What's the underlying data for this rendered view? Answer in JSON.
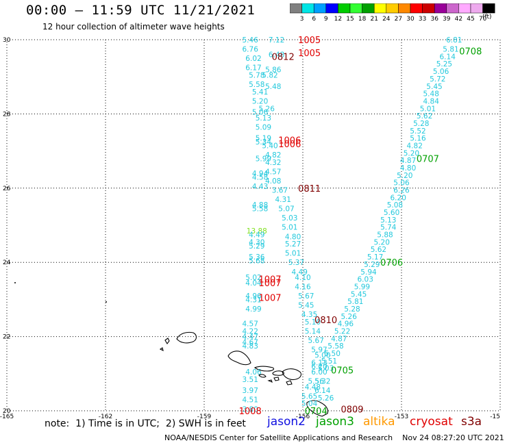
{
  "header": {
    "title": "00:00 — 11:59 UTC 11/21/2021",
    "subtitle": "12 hour collection of altimeter wave heights"
  },
  "colorbar": {
    "colors": [
      "#808080",
      "#00e5e5",
      "#00a0ff",
      "#0000ff",
      "#00cc00",
      "#33ff33",
      "#00a000",
      "#ffff00",
      "#ffcc00",
      "#ff8800",
      "#ff0000",
      "#cc0000",
      "#990099",
      "#cc66cc",
      "#ffaaff",
      "#eeaaee",
      "#000000"
    ],
    "labels": [
      "3",
      "6",
      "9",
      "12",
      "15",
      "18",
      "21",
      "24",
      "27",
      "30",
      "33",
      "36",
      "39",
      "42",
      "45",
      "70"
    ],
    "units": "(ft)"
  },
  "axes": {
    "lat_ticks": [
      "30",
      "28",
      "26",
      "24",
      "22",
      "20"
    ],
    "lon_ticks": [
      "-165",
      "-162",
      "-159",
      "-156",
      "-153",
      "-15"
    ]
  },
  "footer": {
    "note": "note:  1) Time is in UTC;  2) SWH is in feet",
    "legend": [
      {
        "name": "jason2",
        "color": "#1010e0"
      },
      {
        "name": "jason3",
        "color": "#00a000"
      },
      {
        "name": "altika",
        "color": "#ff9900"
      },
      {
        "name": "cryosat",
        "color": "#e00000"
      },
      {
        "name": "s3a",
        "color": "#800000"
      }
    ],
    "credit": "NOAA/NESDIS Center for Satellite Applications and Research    Nov 24 08:27:20 UTC 2021"
  },
  "times": [
    {
      "text": "1005",
      "lon": -155.8,
      "lat": 30.0,
      "color": "#e00000"
    },
    {
      "text": "1005",
      "lon": -155.8,
      "lat": 29.65,
      "color": "#e00000"
    },
    {
      "text": "0812",
      "lon": -156.6,
      "lat": 29.55,
      "color": "#800000"
    },
    {
      "text": "1006",
      "lon": -156.4,
      "lat": 27.3,
      "color": "#e00000"
    },
    {
      "text": "1006",
      "lon": -156.4,
      "lat": 27.2,
      "color": "#e00000"
    },
    {
      "text": "0811",
      "lon": -155.8,
      "lat": 26.0,
      "color": "#800000"
    },
    {
      "text": "1007",
      "lon": -157.0,
      "lat": 23.55,
      "color": "#e00000"
    },
    {
      "text": "1007",
      "lon": -157.0,
      "lat": 23.45,
      "color": "#e00000"
    },
    {
      "text": "1007",
      "lon": -157.0,
      "lat": 23.05,
      "color": "#e00000"
    },
    {
      "text": "1008",
      "lon": -157.6,
      "lat": 20.0,
      "color": "#e00000"
    },
    {
      "text": "0810",
      "lon": -155.3,
      "lat": 22.45,
      "color": "#800000"
    },
    {
      "text": "0809",
      "lon": -154.5,
      "lat": 20.05,
      "color": "#800000"
    },
    {
      "text": "0708",
      "lon": -150.9,
      "lat": 29.7,
      "color": "#00a000"
    },
    {
      "text": "0707",
      "lon": -152.2,
      "lat": 26.8,
      "color": "#00a000"
    },
    {
      "text": "0706",
      "lon": -153.3,
      "lat": 24.0,
      "color": "#00a000"
    },
    {
      "text": "0705",
      "lon": -154.8,
      "lat": 21.1,
      "color": "#00a000"
    },
    {
      "text": "0704",
      "lon": -155.6,
      "lat": 20.0,
      "color": "#00a000"
    }
  ],
  "wave_heights": {
    "color": "#22c8dc",
    "points": [
      {
        "lon": -157.6,
        "lat": 30.0,
        "swh": "5.46"
      },
      {
        "lon": -156.8,
        "lat": 30.0,
        "swh": "7.12"
      },
      {
        "lon": -157.6,
        "lat": 29.75,
        "swh": "6.76"
      },
      {
        "lon": -156.8,
        "lat": 29.6,
        "swh": "6.48"
      },
      {
        "lon": -157.5,
        "lat": 29.5,
        "swh": "6.02"
      },
      {
        "lon": -157.5,
        "lat": 29.25,
        "swh": "6.17"
      },
      {
        "lon": -156.9,
        "lat": 29.2,
        "swh": "5.86"
      },
      {
        "lon": -157.4,
        "lat": 29.05,
        "swh": "5.78"
      },
      {
        "lon": -157.0,
        "lat": 29.05,
        "swh": "5.82"
      },
      {
        "lon": -157.4,
        "lat": 28.8,
        "swh": "5.58"
      },
      {
        "lon": -156.9,
        "lat": 28.75,
        "swh": "5.48"
      },
      {
        "lon": -157.3,
        "lat": 28.6,
        "swh": "5.41"
      },
      {
        "lon": -157.3,
        "lat": 28.35,
        "swh": "5.20"
      },
      {
        "lon": -157.1,
        "lat": 28.15,
        "swh": "5.26"
      },
      {
        "lon": -157.3,
        "lat": 28.05,
        "swh": "5.06"
      },
      {
        "lon": -157.2,
        "lat": 27.9,
        "swh": "5.13"
      },
      {
        "lon": -157.2,
        "lat": 27.65,
        "swh": "5.09"
      },
      {
        "lon": -157.2,
        "lat": 27.35,
        "swh": "5.19"
      },
      {
        "lon": -157.2,
        "lat": 27.25,
        "swh": "5.34"
      },
      {
        "lon": -157.0,
        "lat": 27.15,
        "swh": "5.40"
      },
      {
        "lon": -156.9,
        "lat": 26.9,
        "swh": "4.82"
      },
      {
        "lon": -157.2,
        "lat": 26.8,
        "swh": "5.99"
      },
      {
        "lon": -156.9,
        "lat": 26.7,
        "swh": "4.32"
      },
      {
        "lon": -156.9,
        "lat": 26.45,
        "swh": "4.57"
      },
      {
        "lon": -157.3,
        "lat": 26.4,
        "swh": "4.94"
      },
      {
        "lon": -157.3,
        "lat": 26.3,
        "swh": "4.58"
      },
      {
        "lon": -156.9,
        "lat": 26.2,
        "swh": "4.08"
      },
      {
        "lon": -157.3,
        "lat": 26.05,
        "swh": "4.43"
      },
      {
        "lon": -156.7,
        "lat": 25.95,
        "swh": "3.67"
      },
      {
        "lon": -156.6,
        "lat": 25.7,
        "swh": "4.31"
      },
      {
        "lon": -157.3,
        "lat": 25.55,
        "swh": "4.88"
      },
      {
        "lon": -157.3,
        "lat": 25.45,
        "swh": "5.58"
      },
      {
        "lon": -156.5,
        "lat": 25.45,
        "swh": "5.07"
      },
      {
        "lon": -156.4,
        "lat": 25.2,
        "swh": "5.03"
      },
      {
        "lon": -156.4,
        "lat": 24.95,
        "swh": "5.01"
      },
      {
        "lon": -157.4,
        "lat": 24.85,
        "swh": "13.88",
        "color": "#80e020"
      },
      {
        "lon": -156.3,
        "lat": 24.7,
        "swh": "4.80"
      },
      {
        "lon": -157.4,
        "lat": 24.75,
        "swh": "4.49"
      },
      {
        "lon": -157.4,
        "lat": 24.55,
        "swh": "4.30"
      },
      {
        "lon": -157.4,
        "lat": 24.45,
        "swh": "5.29"
      },
      {
        "lon": -156.3,
        "lat": 24.5,
        "swh": "5.27"
      },
      {
        "lon": -156.3,
        "lat": 24.25,
        "swh": "5.01"
      },
      {
        "lon": -157.4,
        "lat": 24.15,
        "swh": "5.36"
      },
      {
        "lon": -157.4,
        "lat": 24.05,
        "swh": "5.68"
      },
      {
        "lon": -156.2,
        "lat": 24.0,
        "swh": "5.37"
      },
      {
        "lon": -156.1,
        "lat": 23.75,
        "swh": "4.49"
      },
      {
        "lon": -157.5,
        "lat": 23.6,
        "swh": "5.02"
      },
      {
        "lon": -156.0,
        "lat": 23.6,
        "swh": "4.10"
      },
      {
        "lon": -157.5,
        "lat": 23.45,
        "swh": "4.04"
      },
      {
        "lon": -156.0,
        "lat": 23.35,
        "swh": "4.16"
      },
      {
        "lon": -157.5,
        "lat": 23.1,
        "swh": "4.96"
      },
      {
        "lon": -157.5,
        "lat": 23.0,
        "swh": "4.31"
      },
      {
        "lon": -155.9,
        "lat": 23.1,
        "swh": "5.67"
      },
      {
        "lon": -155.9,
        "lat": 22.85,
        "swh": "5.45"
      },
      {
        "lon": -157.5,
        "lat": 22.75,
        "swh": "4.99"
      },
      {
        "lon": -155.8,
        "lat": 22.6,
        "swh": "4.35"
      },
      {
        "lon": -155.7,
        "lat": 22.4,
        "swh": "5.10"
      },
      {
        "lon": -157.6,
        "lat": 22.35,
        "swh": "4.57"
      },
      {
        "lon": -157.6,
        "lat": 22.15,
        "swh": "4.22"
      },
      {
        "lon": -155.7,
        "lat": 22.15,
        "swh": "5.14"
      },
      {
        "lon": -157.6,
        "lat": 22.0,
        "swh": "4.47"
      },
      {
        "lon": -157.6,
        "lat": 21.85,
        "swh": "4.67"
      },
      {
        "lon": -157.6,
        "lat": 21.75,
        "swh": "4.83"
      },
      {
        "lon": -155.6,
        "lat": 21.9,
        "swh": "5.67"
      },
      {
        "lon": -155.5,
        "lat": 21.65,
        "swh": "5.97"
      },
      {
        "lon": -155.4,
        "lat": 21.5,
        "swh": "5.00"
      },
      {
        "lon": -155.5,
        "lat": 21.3,
        "swh": "6.13"
      },
      {
        "lon": -155.5,
        "lat": 21.2,
        "swh": "6.20"
      },
      {
        "lon": -157.5,
        "lat": 21.05,
        "swh": "4.06"
      },
      {
        "lon": -155.5,
        "lat": 21.05,
        "swh": "6.00"
      },
      {
        "lon": -157.6,
        "lat": 20.85,
        "swh": "3.51"
      },
      {
        "lon": -155.6,
        "lat": 20.8,
        "swh": "5.56"
      },
      {
        "lon": -155.4,
        "lat": 20.8,
        "swh": "5.32"
      },
      {
        "lon": -155.7,
        "lat": 20.65,
        "swh": "4.48"
      },
      {
        "lon": -155.4,
        "lat": 20.55,
        "swh": "6.14"
      },
      {
        "lon": -157.6,
        "lat": 20.55,
        "swh": "3.97"
      },
      {
        "lon": -155.8,
        "lat": 20.4,
        "swh": "5.65"
      },
      {
        "lon": -155.3,
        "lat": 20.35,
        "swh": "5.26"
      },
      {
        "lon": -157.6,
        "lat": 20.3,
        "swh": "4.51"
      },
      {
        "lon": -155.8,
        "lat": 20.2,
        "swh": "5.04"
      },
      {
        "lon": -157.6,
        "lat": 20.05,
        "swh": "3.80"
      },
      {
        "lon": -151.4,
        "lat": 30.0,
        "swh": "6.81"
      },
      {
        "lon": -151.5,
        "lat": 29.75,
        "swh": "5.81"
      },
      {
        "lon": -151.6,
        "lat": 29.55,
        "swh": "6.14"
      },
      {
        "lon": -151.7,
        "lat": 29.35,
        "swh": "5.25"
      },
      {
        "lon": -151.8,
        "lat": 29.15,
        "swh": "5.06"
      },
      {
        "lon": -151.9,
        "lat": 28.95,
        "swh": "5.72"
      },
      {
        "lon": -152.0,
        "lat": 28.75,
        "swh": "5.45"
      },
      {
        "lon": -152.1,
        "lat": 28.55,
        "swh": "5.48"
      },
      {
        "lon": -152.1,
        "lat": 28.35,
        "swh": "4.84"
      },
      {
        "lon": -152.2,
        "lat": 28.15,
        "swh": "5.01"
      },
      {
        "lon": -152.3,
        "lat": 27.95,
        "swh": "5.62"
      },
      {
        "lon": -152.4,
        "lat": 27.75,
        "swh": "5.28"
      },
      {
        "lon": -152.5,
        "lat": 27.55,
        "swh": "5.52"
      },
      {
        "lon": -152.5,
        "lat": 27.35,
        "swh": "5.16"
      },
      {
        "lon": -152.6,
        "lat": 27.15,
        "swh": "4.82"
      },
      {
        "lon": -152.7,
        "lat": 26.95,
        "swh": "5.20"
      },
      {
        "lon": -152.8,
        "lat": 26.75,
        "swh": "4.87"
      },
      {
        "lon": -152.8,
        "lat": 26.55,
        "swh": "4.80"
      },
      {
        "lon": -152.9,
        "lat": 26.35,
        "swh": "5.20"
      },
      {
        "lon": -153.0,
        "lat": 26.15,
        "swh": "5.06"
      },
      {
        "lon": -153.0,
        "lat": 25.95,
        "swh": "6.26"
      },
      {
        "lon": -153.1,
        "lat": 25.75,
        "swh": "6.20"
      },
      {
        "lon": -153.2,
        "lat": 25.55,
        "swh": "5.08"
      },
      {
        "lon": -153.3,
        "lat": 25.35,
        "swh": "5.60"
      },
      {
        "lon": -153.4,
        "lat": 25.15,
        "swh": "5.13"
      },
      {
        "lon": -153.4,
        "lat": 24.95,
        "swh": "5.74"
      },
      {
        "lon": -153.5,
        "lat": 24.75,
        "swh": "5.88"
      },
      {
        "lon": -153.6,
        "lat": 24.55,
        "swh": "5.20"
      },
      {
        "lon": -153.7,
        "lat": 24.35,
        "swh": "5.62"
      },
      {
        "lon": -153.8,
        "lat": 24.15,
        "swh": "5.17"
      },
      {
        "lon": -153.9,
        "lat": 23.95,
        "swh": "5.29"
      },
      {
        "lon": -154.0,
        "lat": 23.75,
        "swh": "5.94"
      },
      {
        "lon": -154.1,
        "lat": 23.55,
        "swh": "6.03"
      },
      {
        "lon": -154.2,
        "lat": 23.35,
        "swh": "5.99"
      },
      {
        "lon": -154.3,
        "lat": 23.15,
        "swh": "5.45"
      },
      {
        "lon": -154.4,
        "lat": 22.95,
        "swh": "5.81"
      },
      {
        "lon": -154.5,
        "lat": 22.75,
        "swh": "5.28"
      },
      {
        "lon": -154.6,
        "lat": 22.55,
        "swh": "5.26"
      },
      {
        "lon": -154.7,
        "lat": 22.35,
        "swh": "4.96"
      },
      {
        "lon": -154.8,
        "lat": 22.15,
        "swh": "5.22"
      },
      {
        "lon": -154.9,
        "lat": 21.95,
        "swh": "4.87"
      },
      {
        "lon": -155.0,
        "lat": 21.75,
        "swh": "5.58"
      },
      {
        "lon": -155.1,
        "lat": 21.55,
        "swh": "5.50"
      },
      {
        "lon": -155.2,
        "lat": 21.35,
        "swh": "5.51"
      },
      {
        "lon": -155.3,
        "lat": 21.15,
        "swh": "5.03"
      }
    ]
  }
}
